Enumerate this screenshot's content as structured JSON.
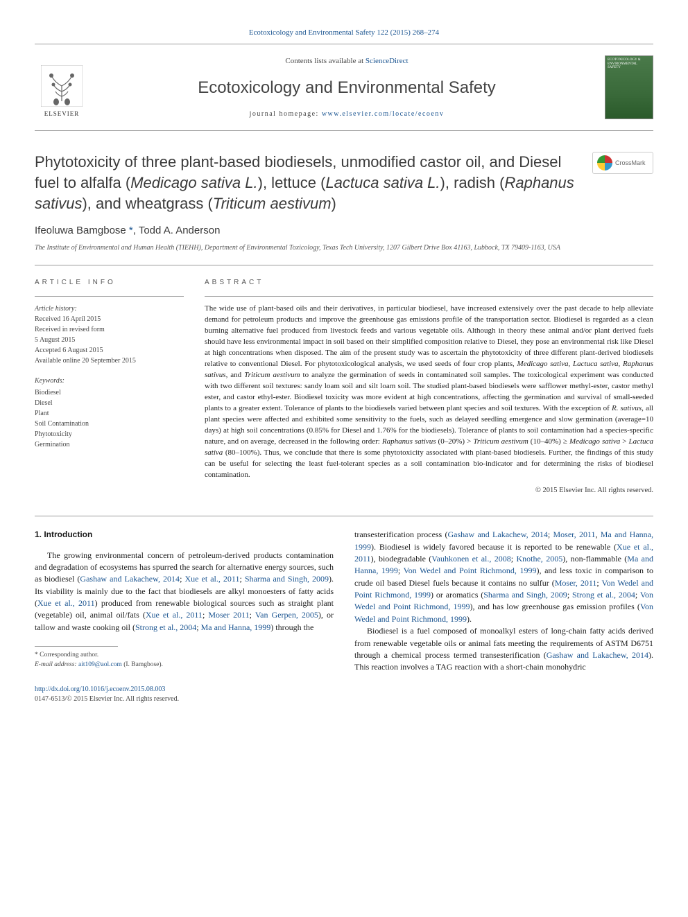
{
  "header": {
    "citation": "Ecotoxicology and Environmental Safety 122 (2015) 268–274",
    "contents_prefix": "Contents lists available at ",
    "contents_link": "ScienceDirect",
    "journal_name": "Ecotoxicology and Environmental Safety",
    "home_prefix": "journal homepage: ",
    "home_link": "www.elsevier.com/locate/ecoenv",
    "elsevier_label": "ELSEVIER",
    "cover_label": "ECOTOXICOLOGY & ENVIRONMENTAL SAFETY",
    "crossmark_label": "CrossMark"
  },
  "article": {
    "title_parts": [
      {
        "t": "Phytotoxicity of three plant-based biodiesels, unmodified castor oil, and Diesel fuel to alfalfa (",
        "i": false
      },
      {
        "t": "Medicago sativa L.",
        "i": true
      },
      {
        "t": "), lettuce (",
        "i": false
      },
      {
        "t": "Lactuca sativa L.",
        "i": true
      },
      {
        "t": "), radish (",
        "i": false
      },
      {
        "t": "Raphanus sativus",
        "i": true
      },
      {
        "t": "), and wheatgrass (",
        "i": false
      },
      {
        "t": "Triticum aestivum",
        "i": true
      },
      {
        "t": ")",
        "i": false
      }
    ],
    "authors_html": "Ifeoluwa Bamgbose <a href='#'>*</a>, Todd A. Anderson",
    "affiliation": "The Institute of Environmental and Human Health (TIEHH), Department of Environmental Toxicology, Texas Tech University, 1207 Gilbert Drive Box 41163, Lubbock, TX 79409-1163, USA"
  },
  "info": {
    "heading": "ARTICLE INFO",
    "history_label": "Article history:",
    "history": [
      "Received 16 April 2015",
      "Received in revised form",
      "5 August 2015",
      "Accepted 6 August 2015",
      "Available online 20 September 2015"
    ],
    "keywords_label": "Keywords:",
    "keywords": [
      "Biodiesel",
      "Diesel",
      "Plant",
      "Soil Contamination",
      "Phytotoxicity",
      "Germination"
    ]
  },
  "abstract": {
    "heading": "ABSTRACT",
    "text_parts": [
      {
        "t": "The wide use of plant-based oils and their derivatives, in particular biodiesel, have increased extensively over the past decade to help alleviate demand for petroleum products and improve the greenhouse gas emissions profile of the transportation sector. Biodiesel is regarded as a clean burning alternative fuel produced from livestock feeds and various vegetable oils. Although in theory these animal and/or plant derived fuels should have less environmental impact in soil based on their simplified composition relative to Diesel, they pose an environmental risk like Diesel at high concentrations when disposed. The aim of the present study was to ascertain the phytotoxicity of three different plant-derived biodiesels relative to conventional Diesel. For phytotoxicological analysis, we used seeds of four crop plants, ",
        "i": false
      },
      {
        "t": "Medicago sativa, Lactuca sativa, Raphanus sativus",
        "i": true
      },
      {
        "t": ", and ",
        "i": false
      },
      {
        "t": "Triticum aestivum",
        "i": true
      },
      {
        "t": " to analyze the germination of seeds in contaminated soil samples. The toxicological experiment was conducted with two different soil textures: sandy loam soil and silt loam soil. The studied plant-based biodiesels were safflower methyl-ester, castor methyl ester, and castor ethyl-ester. Biodiesel toxicity was more evident at high concentrations, affecting the germination and survival of small-seeded plants to a greater extent. Tolerance of plants to the biodiesels varied between plant species and soil textures. With the exception of ",
        "i": false
      },
      {
        "t": "R. sativus",
        "i": true
      },
      {
        "t": ", all plant species were affected and exhibited some sensitivity to the fuels, such as delayed seedling emergence and slow germination (average=10 days) at high soil concentrations (0.85% for Diesel and 1.76% for the biodiesels). Tolerance of plants to soil contamination had a species-specific nature, and on average, decreased in the following order: ",
        "i": false
      },
      {
        "t": "Raphanus sativus",
        "i": true
      },
      {
        "t": " (0–20%) > ",
        "i": false
      },
      {
        "t": "Triticum aestivum",
        "i": true
      },
      {
        "t": " (10–40%) ≥ ",
        "i": false
      },
      {
        "t": "Medicago sativa",
        "i": true
      },
      {
        "t": " > ",
        "i": false
      },
      {
        "t": "Lactuca sativa",
        "i": true
      },
      {
        "t": " (80–100%). Thus, we conclude that there is some phytotoxicity associated with plant-based biodiesels. Further, the findings of this study can be useful for selecting the least fuel-tolerant species as a soil contamination bio-indicator and for determining the risks of biodiesel contamination.",
        "i": false
      }
    ],
    "copyright": "© 2015 Elsevier Inc. All rights reserved."
  },
  "body": {
    "section_heading": "1. Introduction",
    "para1_html": "The growing environmental concern of petroleum-derived products contamination and degradation of ecosystems has spurred the search for alternative energy sources, such as biodiesel (<a href='#'>Gashaw and Lakachew, 2014</a>; <a href='#'>Xue et al., 2011</a>; <a href='#'>Sharma and Singh, 2009</a>). Its viability is mainly due to the fact that biodiesels are alkyl monoesters of fatty acids (<a href='#'>Xue et al., 2011</a>) produced from renewable biological sources such as straight plant (vegetable) oil, animal oil/fats (<a href='#'>Xue et al., 2011</a>; <a href='#'>Moser 2011</a>; <a href='#'>Van Gerpen, 2005</a>), or tallow and waste cooking oil (<a href='#'>Strong et al., 2004</a>; <a href='#'>Ma and Hanna, 1999</a>) through the",
    "para1b_html": "transesterification process (<a href='#'>Gashaw and Lakachew, 2014</a>; <a href='#'>Moser, 2011</a>, <a href='#'>Ma and Hanna, 1999</a>). Biodiesel is widely favored because it is reported to be renewable (<a href='#'>Xue et al., 2011</a>), biodegradable (<a href='#'>Vauhkonen et al., 2008</a>; <a href='#'>Knothe, 2005</a>), non-flammable (<a href='#'>Ma and Hanna, 1999</a>; <a href='#'>Von Wedel and Point Richmond, 1999</a>), and less toxic in comparison to crude oil based Diesel fuels because it contains no sulfur (<a href='#'>Moser, 2011</a>; <a href='#'>Von Wedel and Point Richmond, 1999</a>) or aromatics (<a href='#'>Sharma and Singh, 2009</a>; <a href='#'>Strong et al., 2004</a>; <a href='#'>Von Wedel and Point Richmond, 1999</a>), and has low greenhouse gas emission profiles (<a href='#'>Von Wedel and Point Richmond, 1999</a>).",
    "para2_html": "Biodiesel is a fuel composed of monoalkyl esters of long-chain fatty acids derived from renewable vegetable oils or animal fats meeting the requirements of ASTM D6751 through a chemical process termed transesterification (<a href='#'>Gashaw and Lakachew, 2014</a>). This reaction involves a TAG reaction with a short-chain monohydric"
  },
  "footnote": {
    "corr": "* Corresponding author.",
    "email_label": "E-mail address:",
    "email": "ait109@aol.com",
    "email_person": "(I. Bamgbose)."
  },
  "footer": {
    "doi": "http://dx.doi.org/10.1016/j.ecoenv.2015.08.003",
    "issn_line": "0147-6513/© 2015 Elsevier Inc. All rights reserved."
  },
  "colors": {
    "link": "#1a5490",
    "text": "#1a1a1a",
    "muted": "#555555",
    "rule": "#999999"
  },
  "typography": {
    "body_pt": 12,
    "abstract_pt": 11,
    "title_pt": 22,
    "journal_pt": 24,
    "info_pt": 10
  }
}
